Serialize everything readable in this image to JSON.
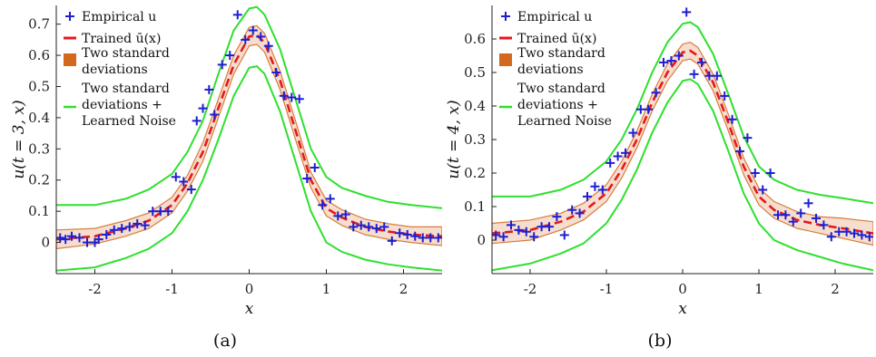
{
  "chart_data": [
    {
      "type": "line",
      "caption": "(a)",
      "xlabel": "x",
      "ylabel": "u(t = 3, x)",
      "xlim": [
        -2.5,
        2.5
      ],
      "ylim": [
        -0.1,
        0.76
      ],
      "xticks": [
        -2,
        -1,
        0,
        1,
        2
      ],
      "yticks": [
        0,
        0.1,
        0.2,
        0.3,
        0.4,
        0.5,
        0.6,
        0.7
      ],
      "grid": false,
      "legend_position": "top-left",
      "legend": [
        "Empirical u",
        "Trained ū(x)",
        "Two standard deviations",
        "Two standard deviations + Learned Noise"
      ],
      "series": [
        {
          "name": "Empirical u",
          "kind": "scatter",
          "color": "#1f1fd0",
          "x": [
            -2.45,
            -2.38,
            -2.3,
            -2.2,
            -2.1,
            -2.0,
            -1.95,
            -1.85,
            -1.75,
            -1.65,
            -1.55,
            -1.45,
            -1.35,
            -1.25,
            -1.15,
            -1.05,
            -0.95,
            -0.85,
            -0.75,
            -0.68,
            -0.6,
            -0.52,
            -0.45,
            -0.35,
            -0.25,
            -0.15,
            -0.05,
            0.05,
            0.15,
            0.25,
            0.35,
            0.45,
            0.55,
            0.65,
            0.75,
            0.85,
            0.95,
            1.05,
            1.15,
            1.25,
            1.35,
            1.45,
            1.55,
            1.65,
            1.75,
            1.85,
            1.95,
            2.05,
            2.15,
            2.25,
            2.35,
            2.45
          ],
          "y": [
            0.015,
            0.01,
            0.02,
            0.015,
            0.0,
            0.0,
            0.01,
            0.025,
            0.04,
            0.045,
            0.05,
            0.06,
            0.055,
            0.1,
            0.1,
            0.1,
            0.21,
            0.195,
            0.17,
            0.39,
            0.43,
            0.49,
            0.41,
            0.57,
            0.6,
            0.73,
            0.65,
            0.68,
            0.66,
            0.63,
            0.545,
            0.47,
            0.465,
            0.46,
            0.205,
            0.24,
            0.12,
            0.14,
            0.085,
            0.09,
            0.05,
            0.055,
            0.05,
            0.045,
            0.05,
            0.005,
            0.03,
            0.025,
            0.02,
            0.015,
            0.015,
            0.015
          ]
        },
        {
          "name": "Trained ū(x)",
          "kind": "line",
          "color": "#e8171a",
          "x": [
            -2.5,
            -2.0,
            -1.6,
            -1.3,
            -1.0,
            -0.8,
            -0.6,
            -0.4,
            -0.2,
            0.0,
            0.1,
            0.2,
            0.4,
            0.6,
            0.8,
            1.0,
            1.2,
            1.5,
            1.8,
            2.1,
            2.5
          ],
          "y": [
            0.01,
            0.02,
            0.045,
            0.07,
            0.12,
            0.19,
            0.29,
            0.43,
            0.57,
            0.66,
            0.665,
            0.64,
            0.52,
            0.36,
            0.2,
            0.11,
            0.08,
            0.05,
            0.035,
            0.025,
            0.02
          ]
        },
        {
          "name": "Two standard deviations",
          "kind": "band",
          "color": "#d2691e",
          "x": [
            -2.5,
            -2.0,
            -1.6,
            -1.3,
            -1.0,
            -0.8,
            -0.6,
            -0.4,
            -0.2,
            0.0,
            0.1,
            0.2,
            0.4,
            0.6,
            0.8,
            1.0,
            1.2,
            1.5,
            1.8,
            2.1,
            2.5
          ],
          "lower": [
            -0.02,
            -0.005,
            0.02,
            0.045,
            0.095,
            0.165,
            0.26,
            0.4,
            0.54,
            0.63,
            0.635,
            0.61,
            0.49,
            0.33,
            0.175,
            0.085,
            0.055,
            0.025,
            0.01,
            0.0,
            -0.01
          ],
          "upper": [
            0.04,
            0.045,
            0.07,
            0.095,
            0.145,
            0.215,
            0.32,
            0.46,
            0.6,
            0.69,
            0.695,
            0.67,
            0.55,
            0.39,
            0.225,
            0.135,
            0.105,
            0.075,
            0.06,
            0.05,
            0.05
          ]
        },
        {
          "name": "Two standard deviations + Learned Noise",
          "kind": "line-pair",
          "color": "#2ee02e",
          "x": [
            -2.5,
            -2.0,
            -1.6,
            -1.3,
            -1.0,
            -0.8,
            -0.6,
            -0.4,
            -0.2,
            0.0,
            0.1,
            0.2,
            0.4,
            0.6,
            0.8,
            1.0,
            1.2,
            1.5,
            1.8,
            2.1,
            2.5
          ],
          "lower": [
            -0.09,
            -0.08,
            -0.05,
            -0.02,
            0.03,
            0.1,
            0.2,
            0.33,
            0.47,
            0.56,
            0.565,
            0.54,
            0.42,
            0.26,
            0.1,
            0.0,
            -0.03,
            -0.055,
            -0.07,
            -0.08,
            -0.09
          ],
          "upper": [
            0.12,
            0.12,
            0.14,
            0.17,
            0.22,
            0.29,
            0.39,
            0.54,
            0.68,
            0.75,
            0.755,
            0.73,
            0.62,
            0.46,
            0.3,
            0.21,
            0.175,
            0.15,
            0.13,
            0.12,
            0.11
          ]
        }
      ]
    },
    {
      "type": "line",
      "caption": "(b)",
      "xlabel": "x",
      "ylabel": "u(t = 4, x)",
      "xlim": [
        -2.5,
        2.5
      ],
      "ylim": [
        -0.1,
        0.7
      ],
      "xticks": [
        -2,
        -1,
        0,
        1,
        2
      ],
      "yticks": [
        0,
        0.1,
        0.2,
        0.3,
        0.4,
        0.5,
        0.6
      ],
      "grid": false,
      "legend_position": "top-left",
      "legend": [
        "Empirical u",
        "Trained ū(x)",
        "Two standard deviations",
        "Two standard deviations + Learned Noise"
      ],
      "series": [
        {
          "name": "Empirical u",
          "kind": "scatter",
          "color": "#1f1fd0",
          "x": [
            -2.45,
            -2.35,
            -2.25,
            -2.15,
            -2.05,
            -1.95,
            -1.85,
            -1.75,
            -1.65,
            -1.55,
            -1.45,
            -1.35,
            -1.25,
            -1.15,
            -1.05,
            -0.95,
            -0.85,
            -0.75,
            -0.65,
            -0.55,
            -0.45,
            -0.35,
            -0.25,
            -0.15,
            -0.05,
            0.05,
            0.15,
            0.25,
            0.35,
            0.45,
            0.55,
            0.65,
            0.75,
            0.85,
            0.95,
            1.05,
            1.15,
            1.25,
            1.35,
            1.45,
            1.55,
            1.65,
            1.75,
            1.85,
            1.95,
            2.05,
            2.15,
            2.25,
            2.35,
            2.45
          ],
          "y": [
            0.015,
            0.01,
            0.045,
            0.03,
            0.025,
            0.01,
            0.04,
            0.04,
            0.07,
            0.015,
            0.09,
            0.08,
            0.13,
            0.16,
            0.15,
            0.23,
            0.25,
            0.26,
            0.32,
            0.39,
            0.39,
            0.44,
            0.53,
            0.535,
            0.55,
            0.68,
            0.495,
            0.53,
            0.49,
            0.49,
            0.43,
            0.36,
            0.265,
            0.305,
            0.2,
            0.15,
            0.2,
            0.075,
            0.075,
            0.055,
            0.08,
            0.11,
            0.065,
            0.045,
            0.01,
            0.025,
            0.025,
            0.02,
            0.015,
            0.01
          ]
        },
        {
          "name": "Trained ū(x)",
          "kind": "line",
          "color": "#e8171a",
          "x": [
            -2.5,
            -2.0,
            -1.6,
            -1.3,
            -1.0,
            -0.8,
            -0.6,
            -0.4,
            -0.2,
            0.0,
            0.1,
            0.2,
            0.4,
            0.6,
            0.8,
            1.0,
            1.2,
            1.5,
            1.8,
            2.1,
            2.5
          ],
          "y": [
            0.02,
            0.03,
            0.055,
            0.085,
            0.14,
            0.21,
            0.3,
            0.41,
            0.5,
            0.56,
            0.565,
            0.55,
            0.47,
            0.35,
            0.22,
            0.13,
            0.09,
            0.06,
            0.045,
            0.035,
            0.02
          ]
        },
        {
          "name": "Two standard deviations",
          "kind": "band",
          "color": "#d2691e",
          "x": [
            -2.5,
            -2.0,
            -1.6,
            -1.3,
            -1.0,
            -0.8,
            -0.6,
            -0.4,
            -0.2,
            0.0,
            0.1,
            0.2,
            0.4,
            0.6,
            0.8,
            1.0,
            1.2,
            1.5,
            1.8,
            2.1,
            2.5
          ],
          "lower": [
            -0.01,
            0.0,
            0.03,
            0.06,
            0.115,
            0.185,
            0.275,
            0.385,
            0.475,
            0.535,
            0.54,
            0.525,
            0.445,
            0.325,
            0.195,
            0.105,
            0.065,
            0.035,
            0.02,
            0.005,
            -0.015
          ],
          "upper": [
            0.05,
            0.06,
            0.08,
            0.11,
            0.165,
            0.235,
            0.325,
            0.435,
            0.525,
            0.585,
            0.59,
            0.575,
            0.495,
            0.375,
            0.245,
            0.155,
            0.115,
            0.085,
            0.07,
            0.065,
            0.055
          ]
        },
        {
          "name": "Two standard deviations + Learned Noise",
          "kind": "line-pair",
          "color": "#2ee02e",
          "x": [
            -2.5,
            -2.0,
            -1.6,
            -1.3,
            -1.0,
            -0.8,
            -0.6,
            -0.4,
            -0.2,
            0.0,
            0.1,
            0.2,
            0.4,
            0.6,
            0.8,
            1.0,
            1.2,
            1.5,
            1.8,
            2.1,
            2.5
          ],
          "lower": [
            -0.09,
            -0.07,
            -0.04,
            -0.01,
            0.05,
            0.12,
            0.21,
            0.32,
            0.41,
            0.475,
            0.48,
            0.465,
            0.385,
            0.265,
            0.14,
            0.05,
            0.0,
            -0.03,
            -0.05,
            -0.07,
            -0.09
          ],
          "upper": [
            0.13,
            0.13,
            0.15,
            0.18,
            0.235,
            0.3,
            0.39,
            0.5,
            0.59,
            0.645,
            0.65,
            0.635,
            0.555,
            0.435,
            0.31,
            0.22,
            0.18,
            0.15,
            0.135,
            0.125,
            0.11
          ]
        }
      ]
    }
  ]
}
